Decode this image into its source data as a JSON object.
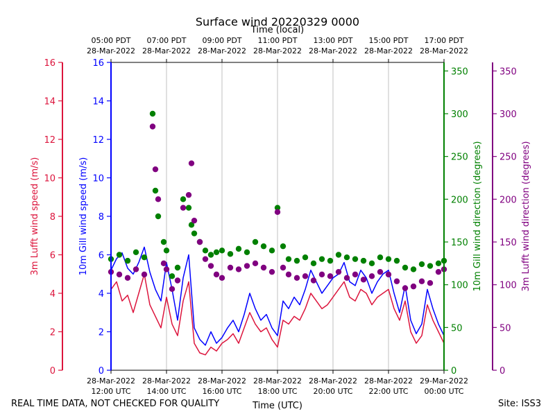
{
  "chart_data": {
    "type": "line",
    "title": "Surface wind 20220329 0000",
    "xlabel": "Time (UTC)",
    "top_xlabel": "Time (local)",
    "x_range_hours_utc": [
      12,
      24
    ],
    "bottom_ticks": [
      {
        "date": "28-Mar-2022",
        "time": "12:00 UTC"
      },
      {
        "date": "28-Mar-2022",
        "time": "14:00 UTC"
      },
      {
        "date": "28-Mar-2022",
        "time": "16:00 UTC"
      },
      {
        "date": "28-Mar-2022",
        "time": "18:00 UTC"
      },
      {
        "date": "28-Mar-2022",
        "time": "20:00 UTC"
      },
      {
        "date": "28-Mar-2022",
        "time": "22:00 UTC"
      },
      {
        "date": "29-Mar-2022",
        "time": "00:00 UTC"
      }
    ],
    "top_ticks": [
      {
        "time": "05:00 PDT",
        "date": "28-Mar-2022"
      },
      {
        "time": "07:00 PDT",
        "date": "28-Mar-2022"
      },
      {
        "time": "09:00 PDT",
        "date": "28-Mar-2022"
      },
      {
        "time": "11:00 PDT",
        "date": "28-Mar-2022"
      },
      {
        "time": "13:00 PDT",
        "date": "28-Mar-2022"
      },
      {
        "time": "15:00 PDT",
        "date": "28-Mar-2022"
      },
      {
        "time": "17:00 PDT",
        "date": "28-Mar-2022"
      }
    ],
    "axes": {
      "lufft_speed": {
        "label": "3m Lufft wind speed (m/s)",
        "color": "#dc143c",
        "range": [
          0,
          16
        ],
        "ticks": [
          "0",
          "2",
          "4",
          "6",
          "8",
          "10",
          "12",
          "14",
          "16"
        ]
      },
      "gill_speed": {
        "label": "10m Gill wind speed (m/s)",
        "color": "#0000ff",
        "range": [
          0,
          16
        ],
        "ticks": [
          "0",
          "2",
          "4",
          "6",
          "8",
          "10",
          "12",
          "14",
          "16"
        ]
      },
      "gill_dir": {
        "label": "10m Gill wind direction (degrees)",
        "color": "#008000",
        "range": [
          0,
          360
        ],
        "ticks": [
          "0",
          "50",
          "100",
          "150",
          "200",
          "250",
          "300",
          "350"
        ]
      },
      "lufft_dir": {
        "label": "3m Lufft wind direction (degrees)",
        "color": "#800080",
        "range": [
          0,
          360
        ],
        "ticks": [
          "0",
          "50",
          "100",
          "150",
          "200",
          "250",
          "300",
          "350"
        ]
      }
    },
    "series": [
      {
        "name": "10m Gill wind speed",
        "kind": "line",
        "color": "#0000ff",
        "x": [
          12.0,
          12.2,
          12.4,
          12.6,
          12.8,
          13.0,
          13.2,
          13.4,
          13.6,
          13.8,
          14.0,
          14.2,
          14.4,
          14.6,
          14.8,
          15.0,
          15.2,
          15.4,
          15.6,
          15.8,
          16.0,
          16.2,
          16.4,
          16.6,
          16.8,
          17.0,
          17.2,
          17.4,
          17.6,
          17.8,
          18.0,
          18.2,
          18.4,
          18.6,
          18.8,
          19.0,
          19.2,
          19.4,
          19.6,
          19.8,
          20.0,
          20.2,
          20.4,
          20.6,
          20.8,
          21.0,
          21.2,
          21.4,
          21.6,
          21.8,
          22.0,
          22.2,
          22.4,
          22.6,
          22.8,
          23.0,
          23.2,
          23.4,
          23.6,
          23.8,
          24.0
        ],
        "values": [
          5.2,
          5.8,
          6.1,
          5.3,
          5.0,
          5.6,
          6.4,
          5.1,
          4.2,
          3.6,
          5.6,
          4.2,
          2.6,
          4.8,
          6.0,
          2.2,
          1.6,
          1.3,
          2.0,
          1.4,
          1.7,
          2.2,
          2.6,
          2.0,
          2.9,
          4.0,
          3.2,
          2.6,
          2.9,
          2.2,
          1.8,
          3.6,
          3.2,
          3.8,
          3.4,
          4.2,
          5.2,
          4.6,
          4.0,
          4.4,
          4.8,
          5.0,
          5.6,
          4.6,
          4.4,
          5.2,
          4.8,
          4.0,
          4.6,
          5.0,
          5.2,
          4.0,
          3.0,
          4.4,
          2.6,
          1.9,
          2.4,
          4.2,
          3.2,
          2.4,
          1.8
        ]
      },
      {
        "name": "3m Lufft wind speed",
        "kind": "line",
        "color": "#dc143c",
        "x": [
          12.0,
          12.2,
          12.4,
          12.6,
          12.8,
          13.0,
          13.2,
          13.4,
          13.6,
          13.8,
          14.0,
          14.2,
          14.4,
          14.6,
          14.8,
          15.0,
          15.2,
          15.4,
          15.6,
          15.8,
          16.0,
          16.2,
          16.4,
          16.6,
          16.8,
          17.0,
          17.2,
          17.4,
          17.6,
          17.8,
          18.0,
          18.2,
          18.4,
          18.6,
          18.8,
          19.0,
          19.2,
          19.4,
          19.6,
          19.8,
          20.0,
          20.2,
          20.4,
          20.6,
          20.8,
          21.0,
          21.2,
          21.4,
          21.6,
          21.8,
          22.0,
          22.2,
          22.4,
          22.6,
          22.8,
          23.0,
          23.2,
          23.4,
          23.6,
          23.8,
          24.0
        ],
        "values": [
          4.2,
          4.6,
          3.6,
          3.9,
          3.0,
          4.0,
          5.0,
          3.4,
          2.8,
          2.2,
          3.8,
          2.4,
          1.8,
          3.6,
          4.6,
          1.4,
          0.9,
          0.8,
          1.2,
          1.0,
          1.4,
          1.6,
          1.9,
          1.4,
          2.2,
          3.0,
          2.4,
          2.0,
          2.2,
          1.6,
          1.2,
          2.6,
          2.4,
          2.8,
          2.6,
          3.2,
          4.0,
          3.6,
          3.2,
          3.4,
          3.8,
          4.2,
          4.6,
          3.8,
          3.6,
          4.2,
          4.0,
          3.4,
          3.8,
          4.0,
          4.2,
          3.2,
          2.6,
          3.6,
          2.0,
          1.4,
          1.8,
          3.4,
          2.6,
          2.0,
          1.4
        ]
      },
      {
        "name": "10m Gill wind direction",
        "kind": "scatter",
        "color": "#008000",
        "x": [
          12.0,
          12.3,
          12.6,
          12.9,
          13.2,
          13.5,
          13.6,
          13.7,
          13.9,
          14.0,
          14.2,
          14.4,
          14.6,
          14.8,
          14.9,
          15.0,
          15.2,
          15.4,
          15.6,
          15.8,
          16.0,
          16.3,
          16.6,
          16.9,
          17.2,
          17.5,
          17.8,
          18.0,
          18.2,
          18.4,
          18.7,
          19.0,
          19.3,
          19.6,
          19.9,
          20.2,
          20.5,
          20.8,
          21.1,
          21.4,
          21.7,
          22.0,
          22.3,
          22.6,
          22.9,
          23.2,
          23.5,
          23.8,
          24.0
        ],
        "values": [
          130,
          135,
          128,
          138,
          132,
          300,
          210,
          180,
          150,
          140,
          110,
          120,
          200,
          190,
          170,
          160,
          150,
          140,
          135,
          138,
          140,
          136,
          142,
          138,
          150,
          145,
          140,
          190,
          145,
          130,
          128,
          132,
          125,
          130,
          128,
          135,
          132,
          130,
          128,
          125,
          132,
          130,
          128,
          120,
          118,
          124,
          122,
          125,
          128
        ]
      },
      {
        "name": "3m Lufft wind direction",
        "kind": "scatter",
        "color": "#800080",
        "x": [
          12.0,
          12.3,
          12.6,
          12.9,
          13.2,
          13.5,
          13.6,
          13.7,
          13.9,
          14.0,
          14.2,
          14.4,
          14.6,
          14.8,
          14.9,
          15.0,
          15.2,
          15.4,
          15.6,
          15.8,
          16.0,
          16.3,
          16.6,
          16.9,
          17.2,
          17.5,
          17.8,
          18.0,
          18.2,
          18.4,
          18.7,
          19.0,
          19.3,
          19.6,
          19.9,
          20.2,
          20.5,
          20.8,
          21.1,
          21.4,
          21.7,
          22.0,
          22.3,
          22.6,
          22.9,
          23.2,
          23.5,
          23.8,
          24.0
        ],
        "values": [
          115,
          112,
          108,
          118,
          112,
          285,
          235,
          200,
          125,
          118,
          95,
          105,
          190,
          205,
          242,
          175,
          150,
          130,
          122,
          112,
          108,
          120,
          118,
          122,
          125,
          120,
          115,
          185,
          120,
          112,
          108,
          110,
          105,
          112,
          110,
          115,
          108,
          112,
          106,
          110,
          115,
          112,
          104,
          96,
          98,
          104,
          102,
          115,
          118
        ]
      }
    ]
  },
  "footer": {
    "disclaimer": "REAL TIME DATA, NOT CHECKED FOR QUALITY",
    "site": "Site: ISS3"
  }
}
